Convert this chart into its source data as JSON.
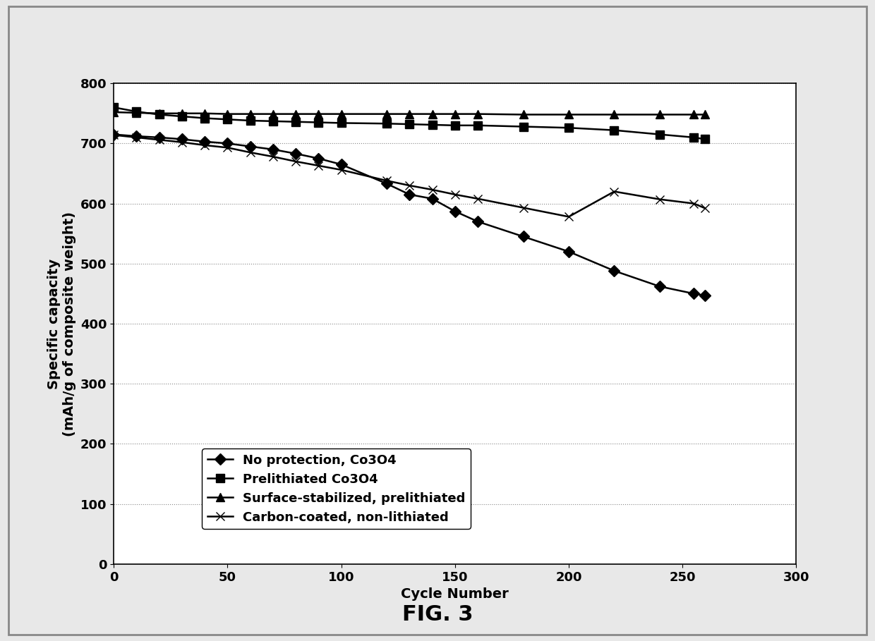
{
  "title": "FIG. 3",
  "xlabel": "Cycle Number",
  "ylabel_line1": "Specific capacity",
  "ylabel_line2": "(mAh/g of composite weight)",
  "xlim": [
    0,
    300
  ],
  "ylim": [
    0,
    800
  ],
  "xticks": [
    0,
    50,
    100,
    150,
    200,
    250,
    300
  ],
  "yticks": [
    0,
    100,
    200,
    300,
    400,
    500,
    600,
    700,
    800
  ],
  "series": [
    {
      "label": "No protection, Co3O4",
      "marker": "D",
      "x": [
        0,
        10,
        20,
        30,
        40,
        50,
        60,
        70,
        80,
        90,
        100,
        120,
        130,
        140,
        150,
        160,
        180,
        200,
        220,
        240,
        255,
        260
      ],
      "y": [
        715,
        712,
        710,
        707,
        703,
        700,
        695,
        690,
        683,
        675,
        665,
        633,
        615,
        608,
        587,
        570,
        545,
        520,
        488,
        462,
        450,
        447
      ]
    },
    {
      "label": "Prelithiated Co3O4",
      "marker": "s",
      "x": [
        0,
        10,
        20,
        30,
        40,
        50,
        60,
        70,
        80,
        90,
        100,
        120,
        130,
        140,
        150,
        160,
        180,
        200,
        220,
        240,
        255,
        260
      ],
      "y": [
        760,
        753,
        748,
        745,
        742,
        740,
        738,
        737,
        736,
        735,
        734,
        733,
        732,
        731,
        730,
        730,
        728,
        726,
        722,
        715,
        710,
        707
      ]
    },
    {
      "label": "Surface-stabilized, prelithiated",
      "marker": "^",
      "x": [
        0,
        10,
        20,
        30,
        40,
        50,
        60,
        70,
        80,
        90,
        100,
        120,
        130,
        140,
        150,
        160,
        180,
        200,
        220,
        240,
        255,
        260
      ],
      "y": [
        752,
        751,
        750,
        750,
        750,
        749,
        749,
        749,
        749,
        749,
        749,
        749,
        749,
        749,
        749,
        749,
        748,
        748,
        748,
        748,
        748,
        748
      ]
    },
    {
      "label": "Carbon-coated, non-lithiated",
      "marker": "x",
      "x": [
        0,
        10,
        20,
        30,
        40,
        50,
        60,
        70,
        80,
        90,
        100,
        120,
        130,
        140,
        150,
        160,
        180,
        200,
        220,
        240,
        255,
        260
      ],
      "y": [
        714,
        710,
        706,
        702,
        697,
        693,
        685,
        678,
        670,
        663,
        656,
        638,
        630,
        623,
        615,
        608,
        593,
        578,
        620,
        607,
        600,
        592
      ]
    }
  ],
  "line_color": "#000000",
  "marker_size": 8,
  "line_width": 1.8,
  "font_color": "#000000",
  "plot_bg": "#ffffff",
  "fig_bg": "#e8e8e8",
  "outer_border_color": "#888888",
  "grid_color": "#888888",
  "legend_fontsize": 13,
  "axis_fontsize": 14,
  "tick_fontsize": 13,
  "title_fontsize": 22
}
